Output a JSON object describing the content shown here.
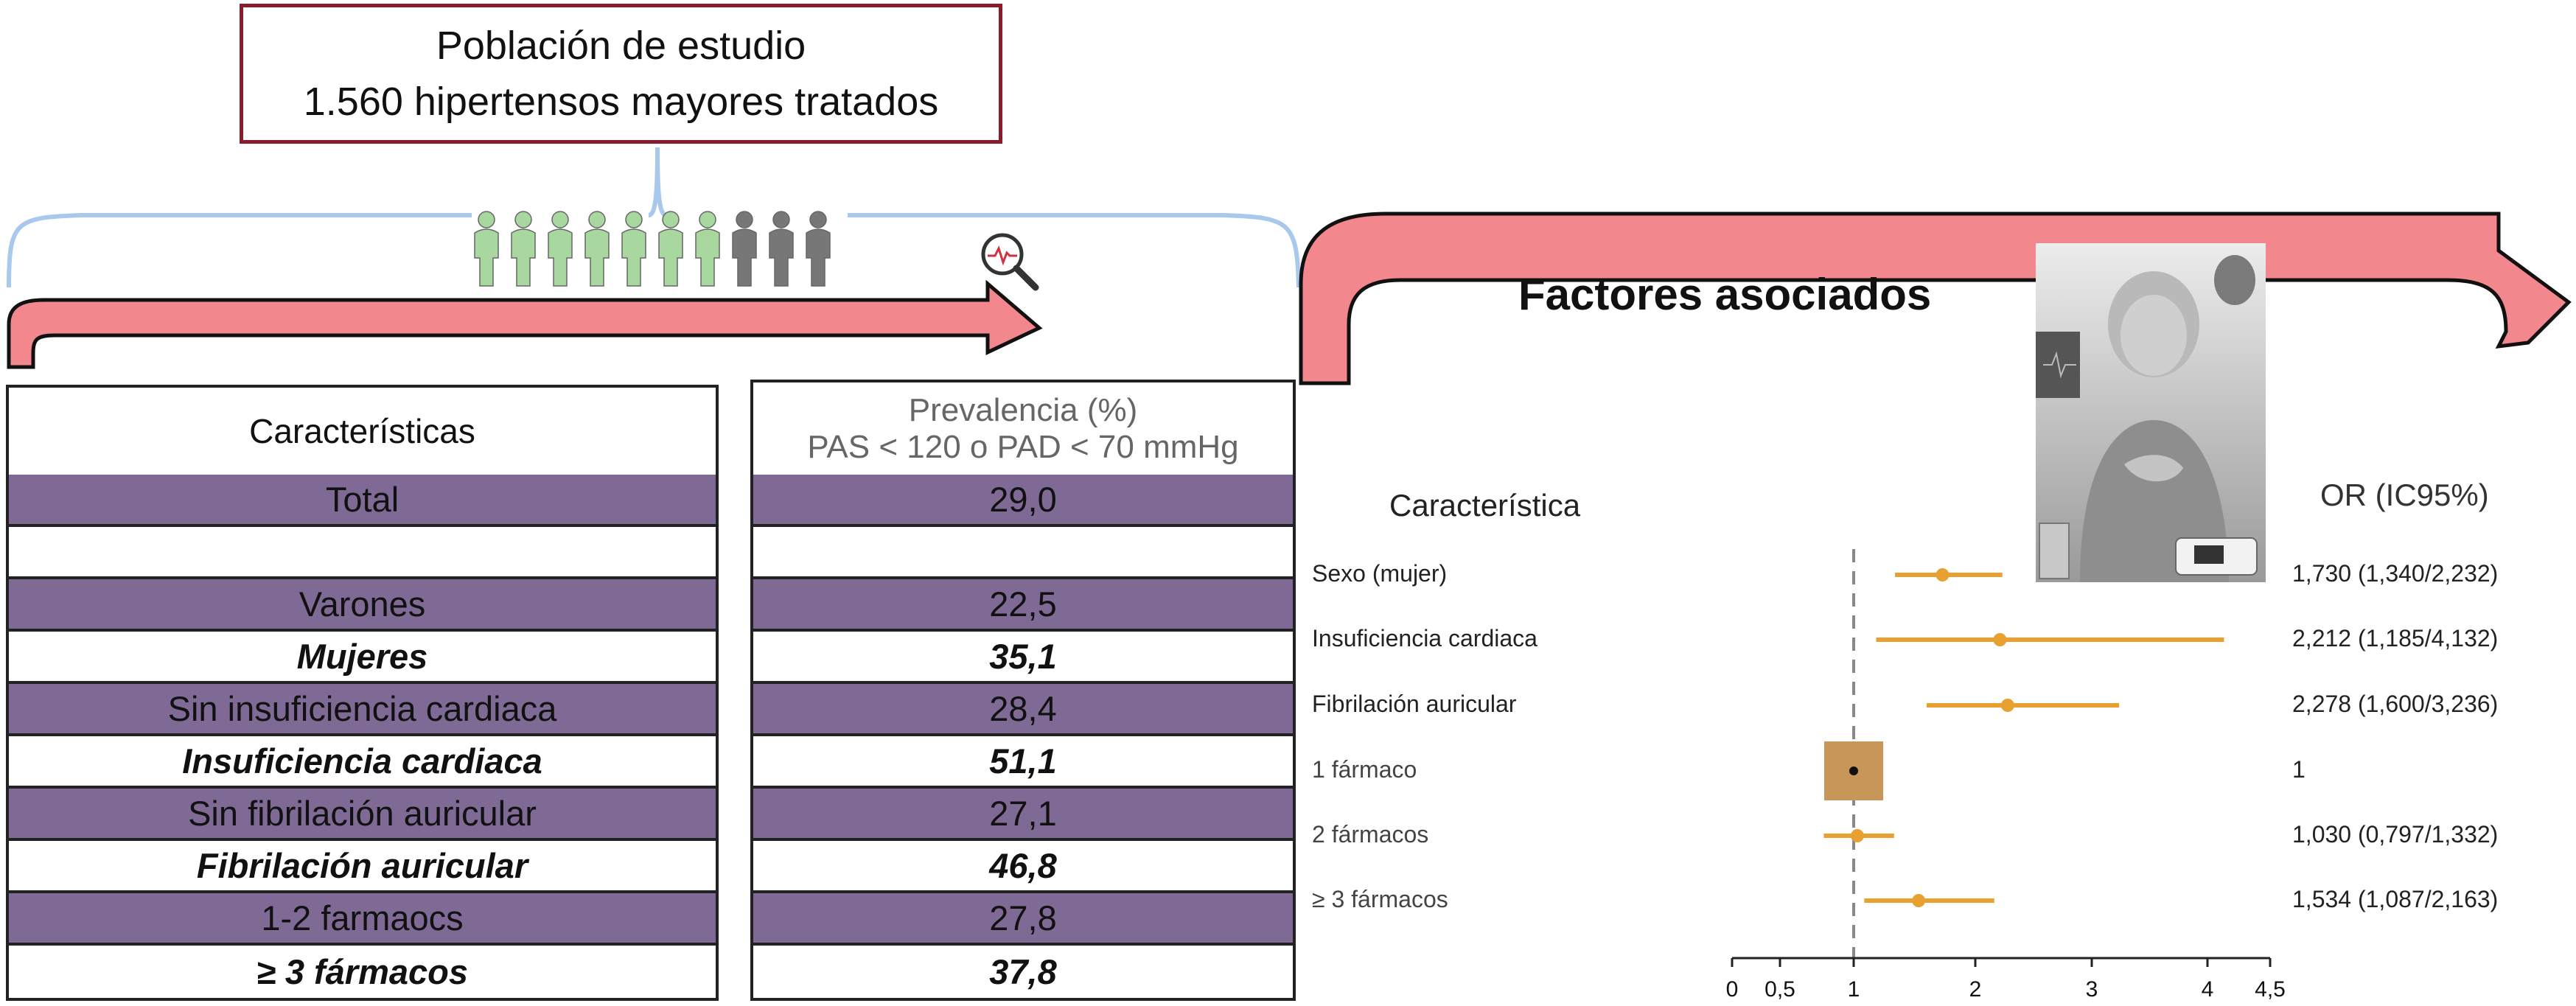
{
  "study": {
    "line1": "Población de estudio",
    "line2": "1.560 hipertensos mayores tratados"
  },
  "table": {
    "header_characteristics": "Características",
    "header_prevalence_1": "Prevalencia (%)",
    "header_prevalence_2": "PAS < 120 o PAD < 70 mmHg",
    "rows": [
      {
        "label": "Total",
        "value": "29,0",
        "style": "purple"
      },
      {
        "label": "",
        "value": "",
        "style": "white"
      },
      {
        "label": "Varones",
        "value": "22,5",
        "style": "purple"
      },
      {
        "label": "Mujeres",
        "value": "35,1",
        "style": "white-bold"
      },
      {
        "label": "Sin insuficiencia cardiaca",
        "value": "28,4",
        "style": "purple"
      },
      {
        "label": "Insuficiencia cardiaca",
        "value": "51,1",
        "style": "white-bold"
      },
      {
        "label": "Sin fibrilación auricular",
        "value": "27,1",
        "style": "purple"
      },
      {
        "label": "Fibrilación auricular",
        "value": "46,8",
        "style": "white-bold"
      },
      {
        "label": "1-2 farmaocs",
        "value": "27,8",
        "style": "purple"
      },
      {
        "label": "≥ 3 fármacos",
        "value": "37,8",
        "style": "white-bold"
      }
    ]
  },
  "forest": {
    "title": "Factores asociados",
    "col_characteristic": "Característica",
    "col_or": "OR (IC95%)",
    "colors": {
      "line": "#e8a030",
      "box": "#c9965a",
      "arrow": "#f2878e"
    },
    "icons": {
      "people": "people-icon",
      "magnifier": "magnifier-heartbeat-icon",
      "photo": "elderly-woman-chest-pain-photo"
    }
  },
  "chart_data": {
    "type": "forest",
    "categories": [
      "Sexo (mujer)",
      "Insuficiencia cardiaca",
      "Fibrilación auricular",
      "1 fármaco",
      "2 fármacos",
      "≥ 3 fármacos"
    ],
    "or_text": [
      "1,730 (1,340/2,232)",
      "2,212 (1,185/4,132)",
      "2,278 (1,600/3,236)",
      "1",
      "1,030 (0,797/1,332)",
      "1,534 (1,087/2,163)"
    ],
    "estimates": [
      1.73,
      2.212,
      2.278,
      1,
      1.03,
      1.534
    ],
    "lower": [
      1.34,
      1.185,
      1.6,
      null,
      0.797,
      1.087
    ],
    "upper": [
      2.232,
      4.132,
      3.236,
      null,
      1.332,
      2.163
    ],
    "reference_line": 1,
    "xlim": [
      0,
      4.5
    ],
    "xticks": [
      0,
      0.5,
      1,
      2,
      3,
      4,
      4.5
    ],
    "xtick_labels": [
      "0",
      "0,5",
      "1",
      "2",
      "3",
      "4",
      "4,5"
    ]
  }
}
